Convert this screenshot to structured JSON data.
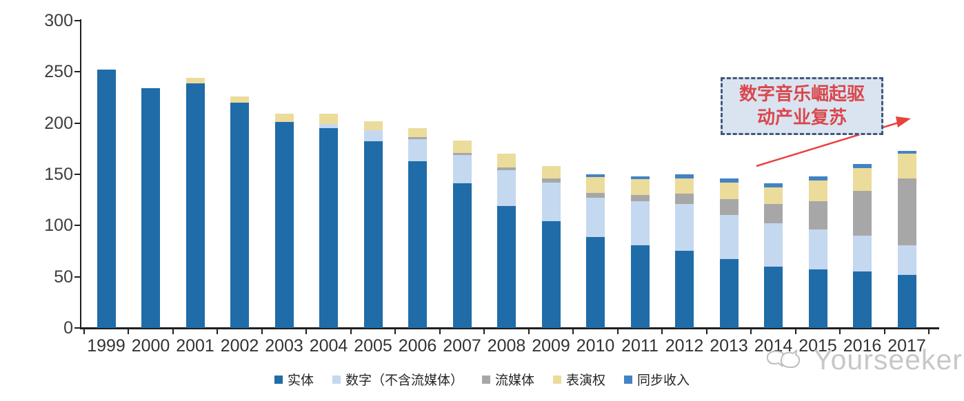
{
  "chart_data": {
    "type": "bar",
    "stacked": true,
    "categories": [
      "1999",
      "2000",
      "2001",
      "2002",
      "2003",
      "2004",
      "2005",
      "2006",
      "2007",
      "2008",
      "2009",
      "2010",
      "2011",
      "2012",
      "2013",
      "2014",
      "2015",
      "2016",
      "2017"
    ],
    "series": [
      {
        "name": "实体",
        "color": "#1f6ca8",
        "values": [
          252,
          234,
          239,
          220,
          201,
          195,
          182,
          163,
          141,
          119,
          104,
          89,
          81,
          75,
          67,
          60,
          57,
          55,
          52
        ]
      },
      {
        "name": "数字（不含流媒体）",
        "color": "#c4d8ef",
        "values": [
          0,
          0,
          0,
          0,
          0,
          4,
          11,
          21,
          28,
          35,
          38,
          38,
          43,
          46,
          43,
          42,
          39,
          35,
          29
        ]
      },
      {
        "name": "流媒体",
        "color": "#a7a7a7",
        "values": [
          0,
          0,
          0,
          0,
          0,
          0,
          0,
          2,
          2,
          3,
          4,
          5,
          6,
          10,
          16,
          19,
          28,
          44,
          65
        ]
      },
      {
        "name": "表演权",
        "color": "#ebdc9b",
        "values": [
          0,
          0,
          5,
          6,
          8,
          10,
          9,
          9,
          12,
          13,
          12,
          15,
          15,
          15,
          16,
          16,
          20,
          22,
          24
        ]
      },
      {
        "name": "同步收入",
        "color": "#4283c4",
        "values": [
          0,
          0,
          0,
          0,
          0,
          0,
          0,
          0,
          0,
          0,
          0,
          3,
          3,
          4,
          4,
          4,
          4,
          4,
          3
        ]
      }
    ],
    "ylim": [
      0,
      300
    ],
    "yticks": [
      0,
      50,
      100,
      150,
      200,
      250,
      300
    ],
    "grid": false,
    "legend_position": "bottom"
  },
  "annotation": {
    "line1": "数字音乐崛起驱",
    "line2": "动产业复苏",
    "text_color": "#d9474b",
    "border_color": "#41587c",
    "fill_color": "#dae4f1",
    "arrow_color": "#e8423d"
  },
  "watermark": {
    "text": "Yourseeker",
    "color": "#c7c7c7"
  }
}
